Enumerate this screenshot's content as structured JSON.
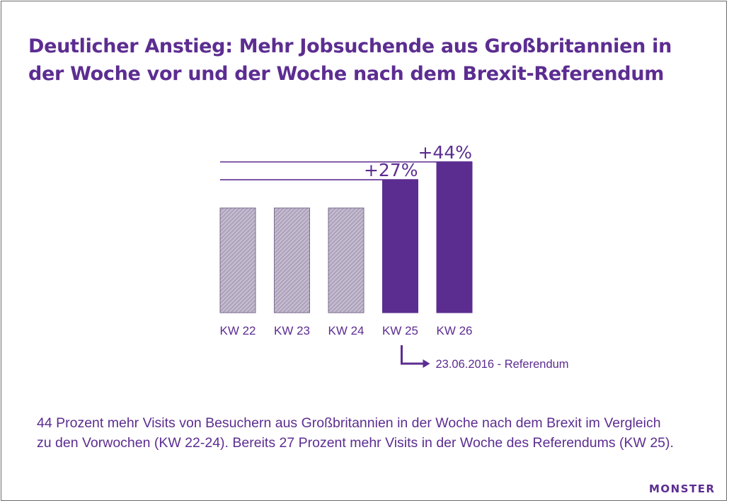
{
  "title": "Deutlicher Anstieg: Mehr Jobsuchende aus Großbritannien in der Woche vor und der Woche nach dem Brexit-Referendum",
  "colors": {
    "accent": "#5c2d91",
    "baseline_bar": "#b3a9c0",
    "text": "#5c2d91"
  },
  "chart_data": {
    "type": "bar",
    "title": "Deutlicher Anstieg: Mehr Jobsuchende aus Großbritannien in der Woche vor und der Woche nach dem Brexit-Referendum",
    "categories": [
      "KW 22",
      "KW 23",
      "KW 24",
      "KW 25",
      "KW 26"
    ],
    "values": [
      100,
      100,
      100,
      127,
      144
    ],
    "value_labels": [
      "",
      "",
      "",
      "+27%",
      "+44%"
    ],
    "highlight": [
      false,
      false,
      false,
      true,
      true
    ],
    "annotation": "23.06.2016 - Referendum",
    "annotation_category": "KW 25",
    "xlabel": "",
    "ylabel": ""
  },
  "caption": "44 Prozent mehr Visits von Besuchern aus Großbritannien in der Woche nach dem Brexit  im Vergleich zu den Vorwochen (KW 22-24). Bereits 27 Prozent mehr Visits in der Woche des Referendums (KW 25).",
  "logo_text": "MONSTER"
}
